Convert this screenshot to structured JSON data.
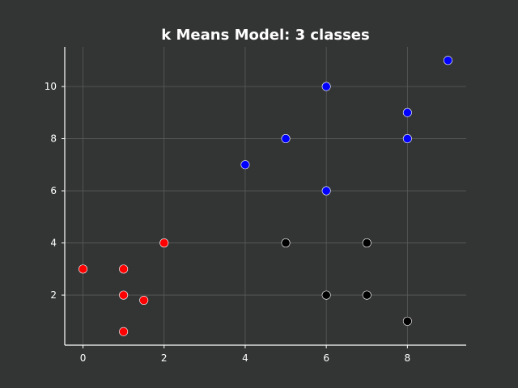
{
  "chart_data": {
    "type": "scatter",
    "title": "k Means Model: 3 classes",
    "xlabel": "",
    "ylabel": "",
    "xlim": [
      -0.45,
      9.45
    ],
    "ylim": [
      0.08,
      11.52
    ],
    "xticks": [
      0,
      2,
      4,
      6,
      8
    ],
    "yticks": [
      2,
      4,
      6,
      8,
      10
    ],
    "grid": true,
    "legend": "none",
    "colors": {
      "background": "#333434",
      "axes": "#ffffff",
      "grid": "#5a5b5b",
      "point_edge": "#ffffff"
    },
    "series": [
      {
        "color": "#ff0000",
        "points": [
          {
            "x": 0,
            "y": 3
          },
          {
            "x": 1,
            "y": 3
          },
          {
            "x": 1,
            "y": 2
          },
          {
            "x": 1.5,
            "y": 1.8
          },
          {
            "x": 1,
            "y": 0.6
          },
          {
            "x": 2,
            "y": 4
          }
        ]
      },
      {
        "color": "#0000ff",
        "points": [
          {
            "x": 4,
            "y": 7
          },
          {
            "x": 5,
            "y": 8
          },
          {
            "x": 6,
            "y": 10
          },
          {
            "x": 6,
            "y": 6
          },
          {
            "x": 8,
            "y": 9
          },
          {
            "x": 8,
            "y": 8
          },
          {
            "x": 9,
            "y": 11
          }
        ]
      },
      {
        "color": "#000000",
        "points": [
          {
            "x": 5,
            "y": 4
          },
          {
            "x": 7,
            "y": 4
          },
          {
            "x": 6,
            "y": 2
          },
          {
            "x": 7,
            "y": 2
          },
          {
            "x": 8,
            "y": 1
          }
        ]
      }
    ]
  }
}
